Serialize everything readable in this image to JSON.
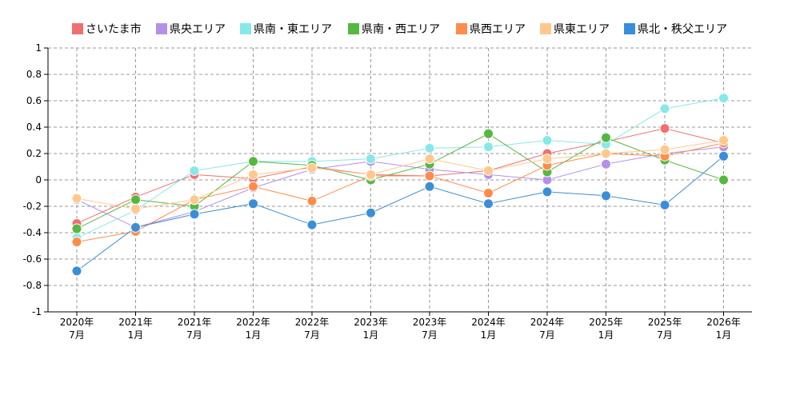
{
  "chart_data": {
    "type": "line",
    "title": "",
    "xlabel": "",
    "ylabel": "",
    "ylim": [
      -1,
      1
    ],
    "yticks": [
      "1",
      "0.8",
      "0.6",
      "0.4",
      "0.2",
      "0",
      "-0.2",
      "-0.4",
      "-0.6",
      "-0.8",
      "-1"
    ],
    "yticks_values": [
      1,
      0.8,
      0.6,
      0.4,
      0.2,
      0,
      -0.2,
      -0.4,
      -0.6,
      -0.8,
      -1
    ],
    "categories": [
      {
        "year": "2020年",
        "month": "7月"
      },
      {
        "year": "2021年",
        "month": "1月"
      },
      {
        "year": "2021年",
        "month": "7月"
      },
      {
        "year": "2022年",
        "month": "1月"
      },
      {
        "year": "2022年",
        "month": "7月"
      },
      {
        "year": "2023年",
        "month": "1月"
      },
      {
        "year": "2023年",
        "month": "7月"
      },
      {
        "year": "2024年",
        "month": "1月"
      },
      {
        "year": "2024年",
        "month": "7月"
      },
      {
        "year": "2025年",
        "month": "1月"
      },
      {
        "year": "2025年",
        "month": "7月"
      },
      {
        "year": "2026年",
        "month": "1月"
      }
    ],
    "grid": true,
    "legend_position": "top",
    "series": [
      {
        "name": "さいたま市",
        "color": "#f07070",
        "values": [
          -0.33,
          -0.13,
          0.04,
          0.01,
          0.1,
          0.04,
          0.03,
          0.07,
          0.2,
          0.29,
          0.39,
          0.28
        ]
      },
      {
        "name": "県央エリア",
        "color": "#b491e8",
        "values": [
          -0.15,
          -0.36,
          -0.24,
          -0.06,
          0.08,
          0.14,
          0.08,
          0.04,
          0.0,
          0.12,
          0.2,
          0.25
        ]
      },
      {
        "name": "県南・東エリア",
        "color": "#88e8e8",
        "values": [
          -0.44,
          -0.23,
          0.07,
          0.14,
          0.14,
          0.16,
          0.24,
          0.25,
          0.3,
          0.27,
          0.54,
          0.62
        ]
      },
      {
        "name": "県南・西エリア",
        "color": "#55b840",
        "values": [
          -0.37,
          -0.15,
          -0.2,
          0.14,
          0.11,
          0.0,
          0.12,
          0.35,
          0.06,
          0.32,
          0.15,
          0.0
        ]
      },
      {
        "name": "県西エリア",
        "color": "#ff8c4c",
        "values": [
          -0.47,
          -0.39,
          -0.15,
          -0.05,
          -0.16,
          0.03,
          0.03,
          -0.1,
          0.11,
          0.2,
          0.18,
          0.28
        ]
      },
      {
        "name": "県東エリア",
        "color": "#ffc88c",
        "values": [
          -0.14,
          -0.22,
          -0.15,
          0.04,
          0.09,
          0.04,
          0.16,
          0.07,
          0.16,
          0.2,
          0.23,
          0.3
        ]
      },
      {
        "name": "県北・秩父エリア",
        "color": "#3a8ed8",
        "values": [
          -0.69,
          -0.36,
          -0.26,
          -0.18,
          -0.34,
          -0.25,
          -0.05,
          -0.18,
          -0.09,
          -0.12,
          -0.19,
          0.18
        ]
      }
    ]
  }
}
